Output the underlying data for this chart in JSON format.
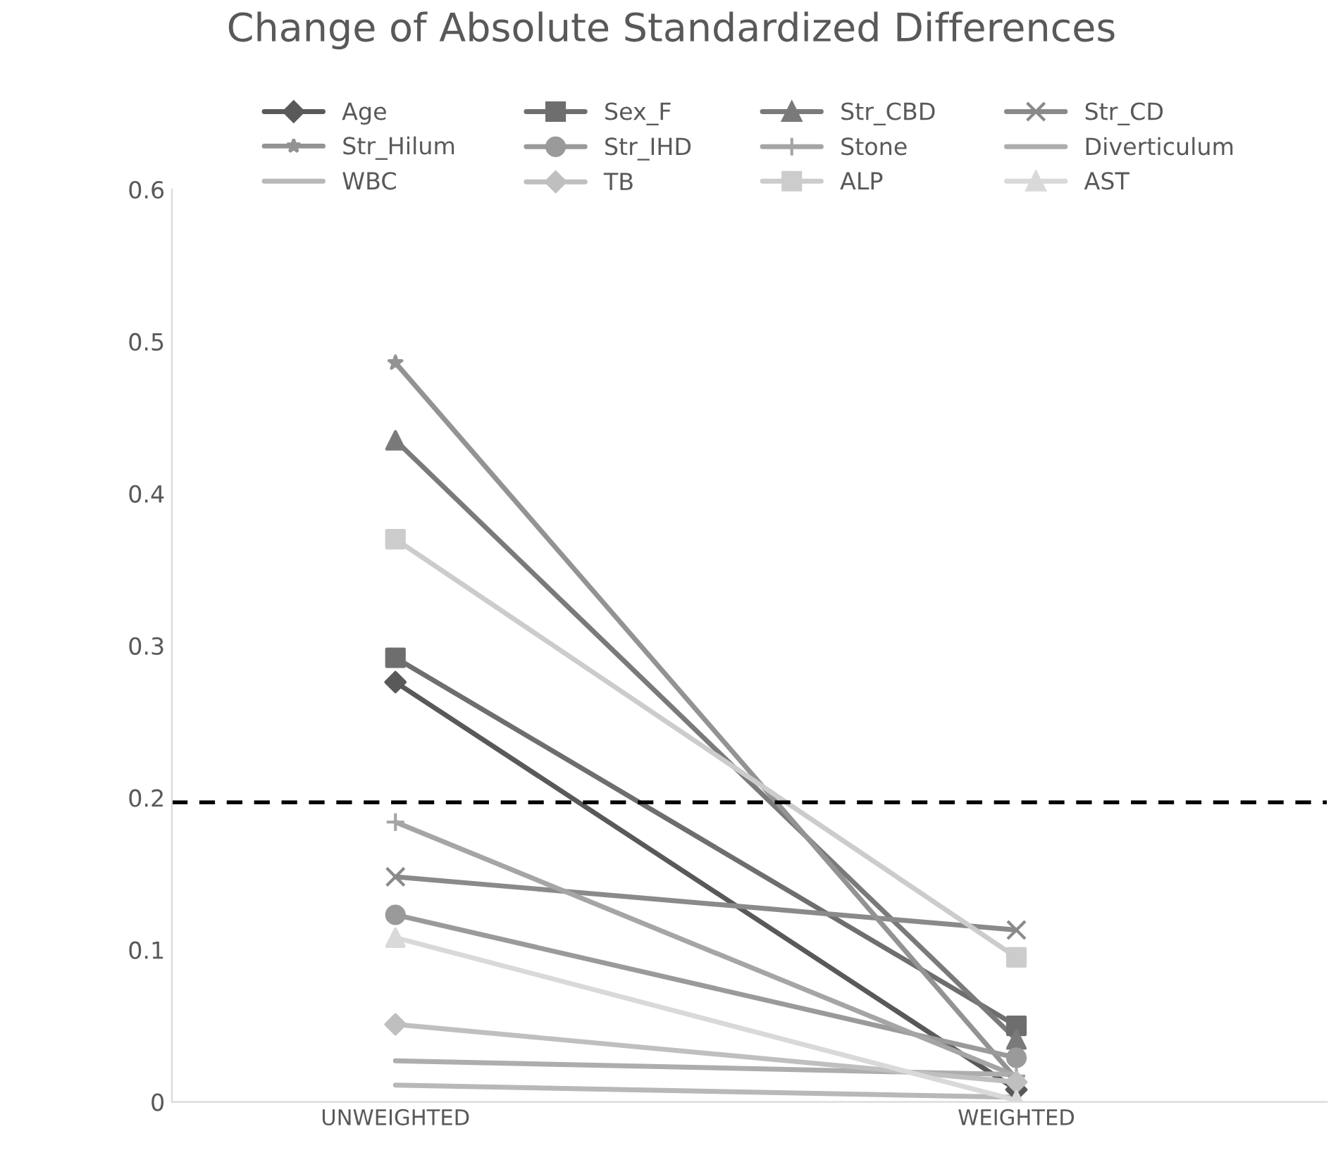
{
  "chart_data": {
    "type": "line",
    "title": "Change of Absolute Standardized Differences",
    "categories": [
      "UNWEIGHTED",
      "WEIGHTED"
    ],
    "ylim": [
      0,
      0.6
    ],
    "yticks": [
      0,
      0.1,
      0.2,
      0.3,
      0.4,
      0.5,
      0.6
    ],
    "grid": false,
    "legend": "top",
    "ref_lines": [
      {
        "axis": "y",
        "value": 0.197,
        "color": "#000000",
        "line_style": "dashed"
      }
    ],
    "series": [
      {
        "name": "Age",
        "color": "#595959",
        "marker": "diamond",
        "values": [
          0.276,
          0.008
        ]
      },
      {
        "name": "Sex_F",
        "color": "#6e6e6e",
        "marker": "square",
        "values": [
          0.292,
          0.05
        ]
      },
      {
        "name": "Str_CBD",
        "color": "#7a7a7a",
        "marker": "triangle",
        "values": [
          0.435,
          0.041
        ]
      },
      {
        "name": "Str_CD",
        "color": "#8a8a8a",
        "marker": "cross",
        "values": [
          0.148,
          0.113
        ]
      },
      {
        "name": "Str_Hilum",
        "color": "#939393",
        "marker": "star",
        "values": [
          0.486,
          0.015
        ]
      },
      {
        "name": "Str_IHD",
        "color": "#9a9a9a",
        "marker": "circle",
        "values": [
          0.123,
          0.029
        ]
      },
      {
        "name": "Stone",
        "color": "#a5a5a5",
        "marker": "plus",
        "values": [
          0.184,
          0.017
        ]
      },
      {
        "name": "Diverticulum",
        "color": "#adadad",
        "marker": "none",
        "values": [
          0.027,
          0.018
        ]
      },
      {
        "name": "WBC",
        "color": "#b8b8b8",
        "marker": "none",
        "values": [
          0.011,
          0.003
        ]
      },
      {
        "name": "TB",
        "color": "#bfbfbf",
        "marker": "diamond",
        "values": [
          0.051,
          0.013
        ]
      },
      {
        "name": "ALP",
        "color": "#cccccc",
        "marker": "square",
        "values": [
          0.37,
          0.095
        ]
      },
      {
        "name": "AST",
        "color": "#d9d9d9",
        "marker": "triangle",
        "values": [
          0.108,
          0.001
        ]
      }
    ]
  }
}
